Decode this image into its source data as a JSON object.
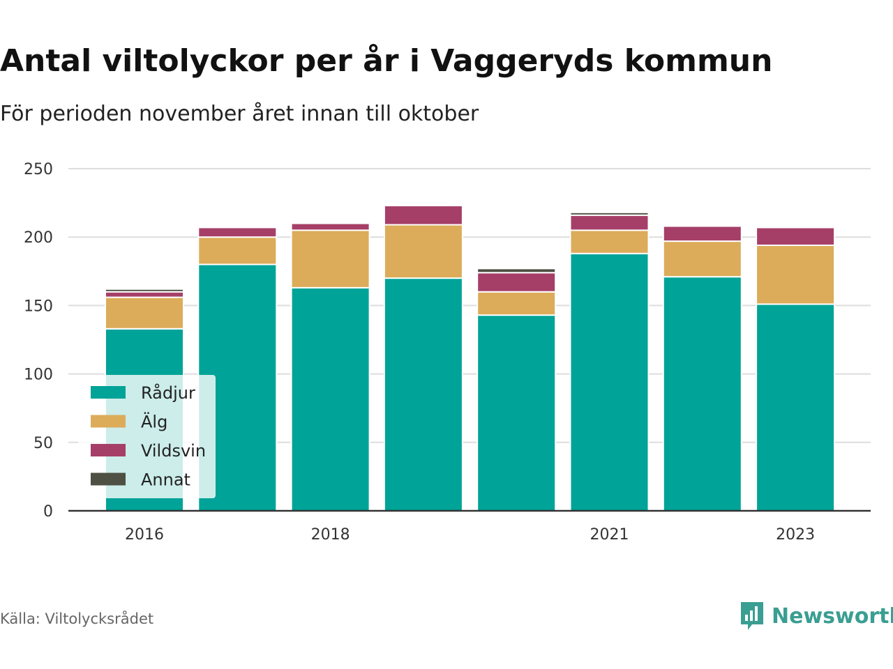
{
  "title": "Antal viltolyckor per år i Vaggeryds kommun",
  "subtitle": "För perioden november året innan till oktober",
  "source": "Källa: Viltolycksrådet",
  "brand": {
    "name": "Newsworthy",
    "icon": "bar-chart-logo-icon",
    "color": "#3a9e92"
  },
  "chart_data": {
    "type": "bar",
    "stacked": true,
    "categories": [
      "2016",
      "2017",
      "2018",
      "2019",
      "2020",
      "2021",
      "2022",
      "2023"
    ],
    "x_tick_labels": [
      "2016",
      "2018",
      "2021",
      "2023"
    ],
    "series": [
      {
        "name": "Rådjur",
        "color": "#00a398",
        "values": [
          133,
          180,
          163,
          170,
          143,
          188,
          171,
          151
        ]
      },
      {
        "name": "Älg",
        "color": "#dcac5a",
        "values": [
          23,
          20,
          42,
          39,
          17,
          17,
          26,
          43
        ]
      },
      {
        "name": "Vildsvin",
        "color": "#a63f68",
        "values": [
          4,
          7,
          5,
          14,
          14,
          11,
          11,
          13
        ]
      },
      {
        "name": "Annat",
        "color": "#4d5042",
        "values": [
          2,
          0,
          0,
          0,
          3,
          2,
          0,
          1
        ]
      }
    ],
    "ylim": [
      0,
      250
    ],
    "yticks": [
      0,
      50,
      100,
      150,
      200,
      250
    ],
    "grid": true,
    "legend_position": "bottom-left"
  }
}
